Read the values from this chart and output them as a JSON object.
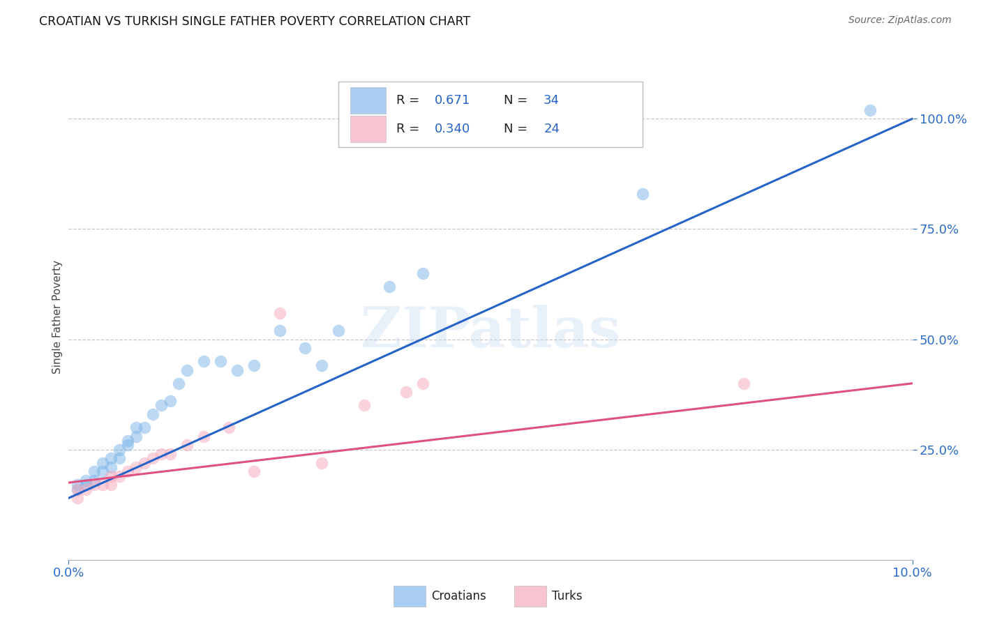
{
  "title": "CROATIAN VS TURKISH SINGLE FATHER POVERTY CORRELATION CHART",
  "source": "Source: ZipAtlas.com",
  "ylabel": "Single Father Poverty",
  "watermark_text": "ZIPatlas",
  "legend_v1": "0.671",
  "legend_nv1": "34",
  "legend_v2": "0.340",
  "legend_nv2": "24",
  "croatian_color": "#7ab3e8",
  "turkish_color": "#f4a7b9",
  "line_blue": "#2563c7",
  "line_pink": "#e05080",
  "background": "#ffffff",
  "grid_color": "#c8c8c8",
  "xlim": [
    0.0,
    0.1
  ],
  "ylim": [
    0.0,
    1.1
  ],
  "xticks": [
    0.0,
    0.1
  ],
  "xticklabels": [
    "0.0%",
    "10.0%"
  ],
  "ytick_values": [
    0.25,
    0.5,
    0.75,
    1.0
  ],
  "ytick_labels": [
    "25.0%",
    "50.0%",
    "75.0%",
    "100.0%"
  ],
  "croatian_x": [
    0.001,
    0.001,
    0.002,
    0.002,
    0.003,
    0.003,
    0.004,
    0.004,
    0.005,
    0.005,
    0.006,
    0.006,
    0.007,
    0.007,
    0.008,
    0.008,
    0.009,
    0.01,
    0.011,
    0.012,
    0.013,
    0.014,
    0.016,
    0.018,
    0.02,
    0.022,
    0.025,
    0.028,
    0.03,
    0.032,
    0.038,
    0.042,
    0.068,
    0.095
  ],
  "croatian_y": [
    0.16,
    0.17,
    0.17,
    0.18,
    0.18,
    0.2,
    0.2,
    0.22,
    0.21,
    0.23,
    0.23,
    0.25,
    0.26,
    0.27,
    0.28,
    0.3,
    0.3,
    0.33,
    0.35,
    0.36,
    0.4,
    0.43,
    0.45,
    0.45,
    0.43,
    0.44,
    0.52,
    0.48,
    0.44,
    0.52,
    0.62,
    0.65,
    0.83,
    1.02
  ],
  "turkish_x": [
    0.001,
    0.001,
    0.002,
    0.003,
    0.004,
    0.005,
    0.005,
    0.006,
    0.007,
    0.008,
    0.009,
    0.01,
    0.011,
    0.012,
    0.014,
    0.016,
    0.019,
    0.022,
    0.025,
    0.03,
    0.035,
    0.04,
    0.042,
    0.08
  ],
  "turkish_y": [
    0.14,
    0.16,
    0.16,
    0.17,
    0.17,
    0.17,
    0.19,
    0.19,
    0.2,
    0.21,
    0.22,
    0.23,
    0.24,
    0.24,
    0.26,
    0.28,
    0.3,
    0.2,
    0.56,
    0.22,
    0.35,
    0.38,
    0.4,
    0.4
  ],
  "blue_line_x": [
    0.0,
    0.1
  ],
  "blue_line_y": [
    0.14,
    1.0
  ],
  "pink_line_x": [
    0.0,
    0.1
  ],
  "pink_line_y": [
    0.175,
    0.4
  ]
}
